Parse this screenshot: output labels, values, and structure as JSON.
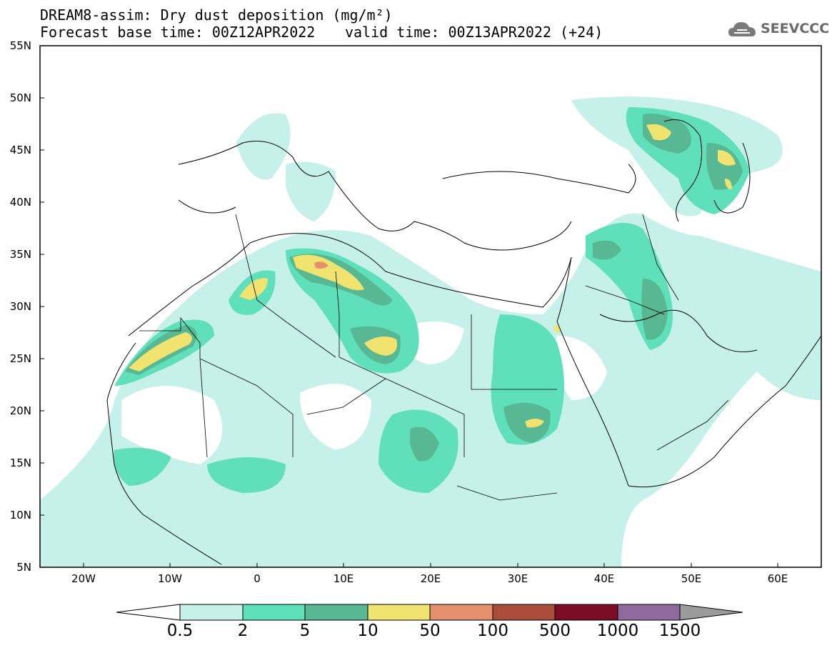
{
  "header": {
    "line1": "DREAM8-assim: Dry dust deposition (mg/m²)",
    "line2_left": "Forecast base time: 00Z12APR2022",
    "line2_right": "valid time: 00Z13APR2022 (+24)"
  },
  "logo": {
    "text": "SEEVCCC",
    "icon": "cloud-icon"
  },
  "map": {
    "region": "North Africa, Mediterranean, Middle East",
    "lon_range": [
      -25,
      65
    ],
    "lat_range": [
      5,
      55
    ],
    "lat_labels": [
      "55N",
      "50N",
      "45N",
      "40N",
      "35N",
      "30N",
      "25N",
      "20N",
      "15N",
      "10N",
      "5N"
    ],
    "lon_labels": [
      "20W",
      "10W",
      "0",
      "10E",
      "20E",
      "30E",
      "40E",
      "50E",
      "60E"
    ]
  },
  "colorbar": {
    "levels": [
      "0.5",
      "2",
      "5",
      "10",
      "50",
      "100",
      "500",
      "1000",
      "1500"
    ],
    "colors": [
      "#c6f1ea",
      "#5fe0bb",
      "#58b894",
      "#f1e36f",
      "#e4906a",
      "#a94c3a",
      "#7c0b24",
      "#8e6a9e",
      "#9b9b9b"
    ]
  }
}
